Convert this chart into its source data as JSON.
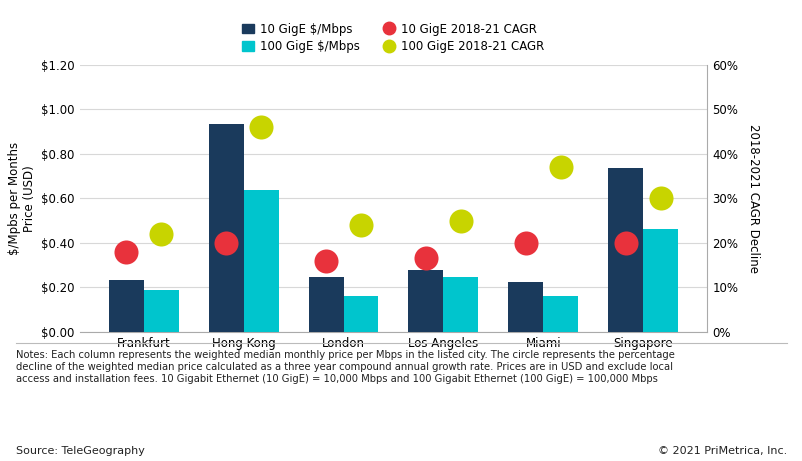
{
  "cities": [
    "Frankfurt",
    "Hong Kong",
    "London",
    "Los Angeles",
    "Miami",
    "Singapore"
  ],
  "bar_10gige": [
    0.235,
    0.935,
    0.248,
    0.278,
    0.225,
    0.735
  ],
  "bar_100gige": [
    0.19,
    0.635,
    0.16,
    0.248,
    0.16,
    0.46
  ],
  "cagr_10gige": [
    0.18,
    0.2,
    0.16,
    0.165,
    0.2,
    0.2
  ],
  "cagr_100gige": [
    0.22,
    0.46,
    0.24,
    0.25,
    0.37,
    0.3
  ],
  "color_10gige_bar": "#1a3a5c",
  "color_100gige_bar": "#00c5cd",
  "color_10gige_cagr": "#e8323c",
  "color_100gige_cagr": "#c8d400",
  "ylabel_left": "$/Mpbs per Months\nPrice (USD)",
  "ylabel_right": "2018-2021 CAGR Decline",
  "ylim_left": [
    0.0,
    1.2
  ],
  "ylim_right": [
    0.0,
    0.6
  ],
  "yticks_left": [
    0.0,
    0.2,
    0.4,
    0.6,
    0.8,
    1.0,
    1.2
  ],
  "ytick_labels_left": [
    "$0.00",
    "$0.20",
    "$0.40",
    "$0.60",
    "$0.80",
    "$1.00",
    "$1.20"
  ],
  "yticks_right": [
    0.0,
    0.1,
    0.2,
    0.3,
    0.4,
    0.5,
    0.6
  ],
  "ytick_labels_right": [
    "0%",
    "10%",
    "20%",
    "30%",
    "40%",
    "50%",
    "60%"
  ],
  "legend_labels": [
    "10 GigE $/Mbps",
    "100 GigE $/Mbps",
    "10 GigE 2018-21 CAGR",
    "100 GigE 2018-21 CAGR"
  ],
  "notes_text": "Notes: Each column represents the weighted median monthly price per Mbps in the listed city. The circle represents the percentage\ndecline of the weighted median price calculated as a three year compound annual growth rate. Prices are in USD and exclude local\naccess and installation fees. 10 Gigabit Ethernet (10 GigE) = 10,000 Mbps and 100 Gigabit Ethernet (100 GigE) = 100,000 Mbps",
  "source_text": "Source: TeleGeography",
  "copyright_text": "© 2021 PriMetrica, Inc.",
  "bar_width": 0.35,
  "dot_size": 300,
  "background_color": "#ffffff",
  "grid_color": "#d8d8d8"
}
